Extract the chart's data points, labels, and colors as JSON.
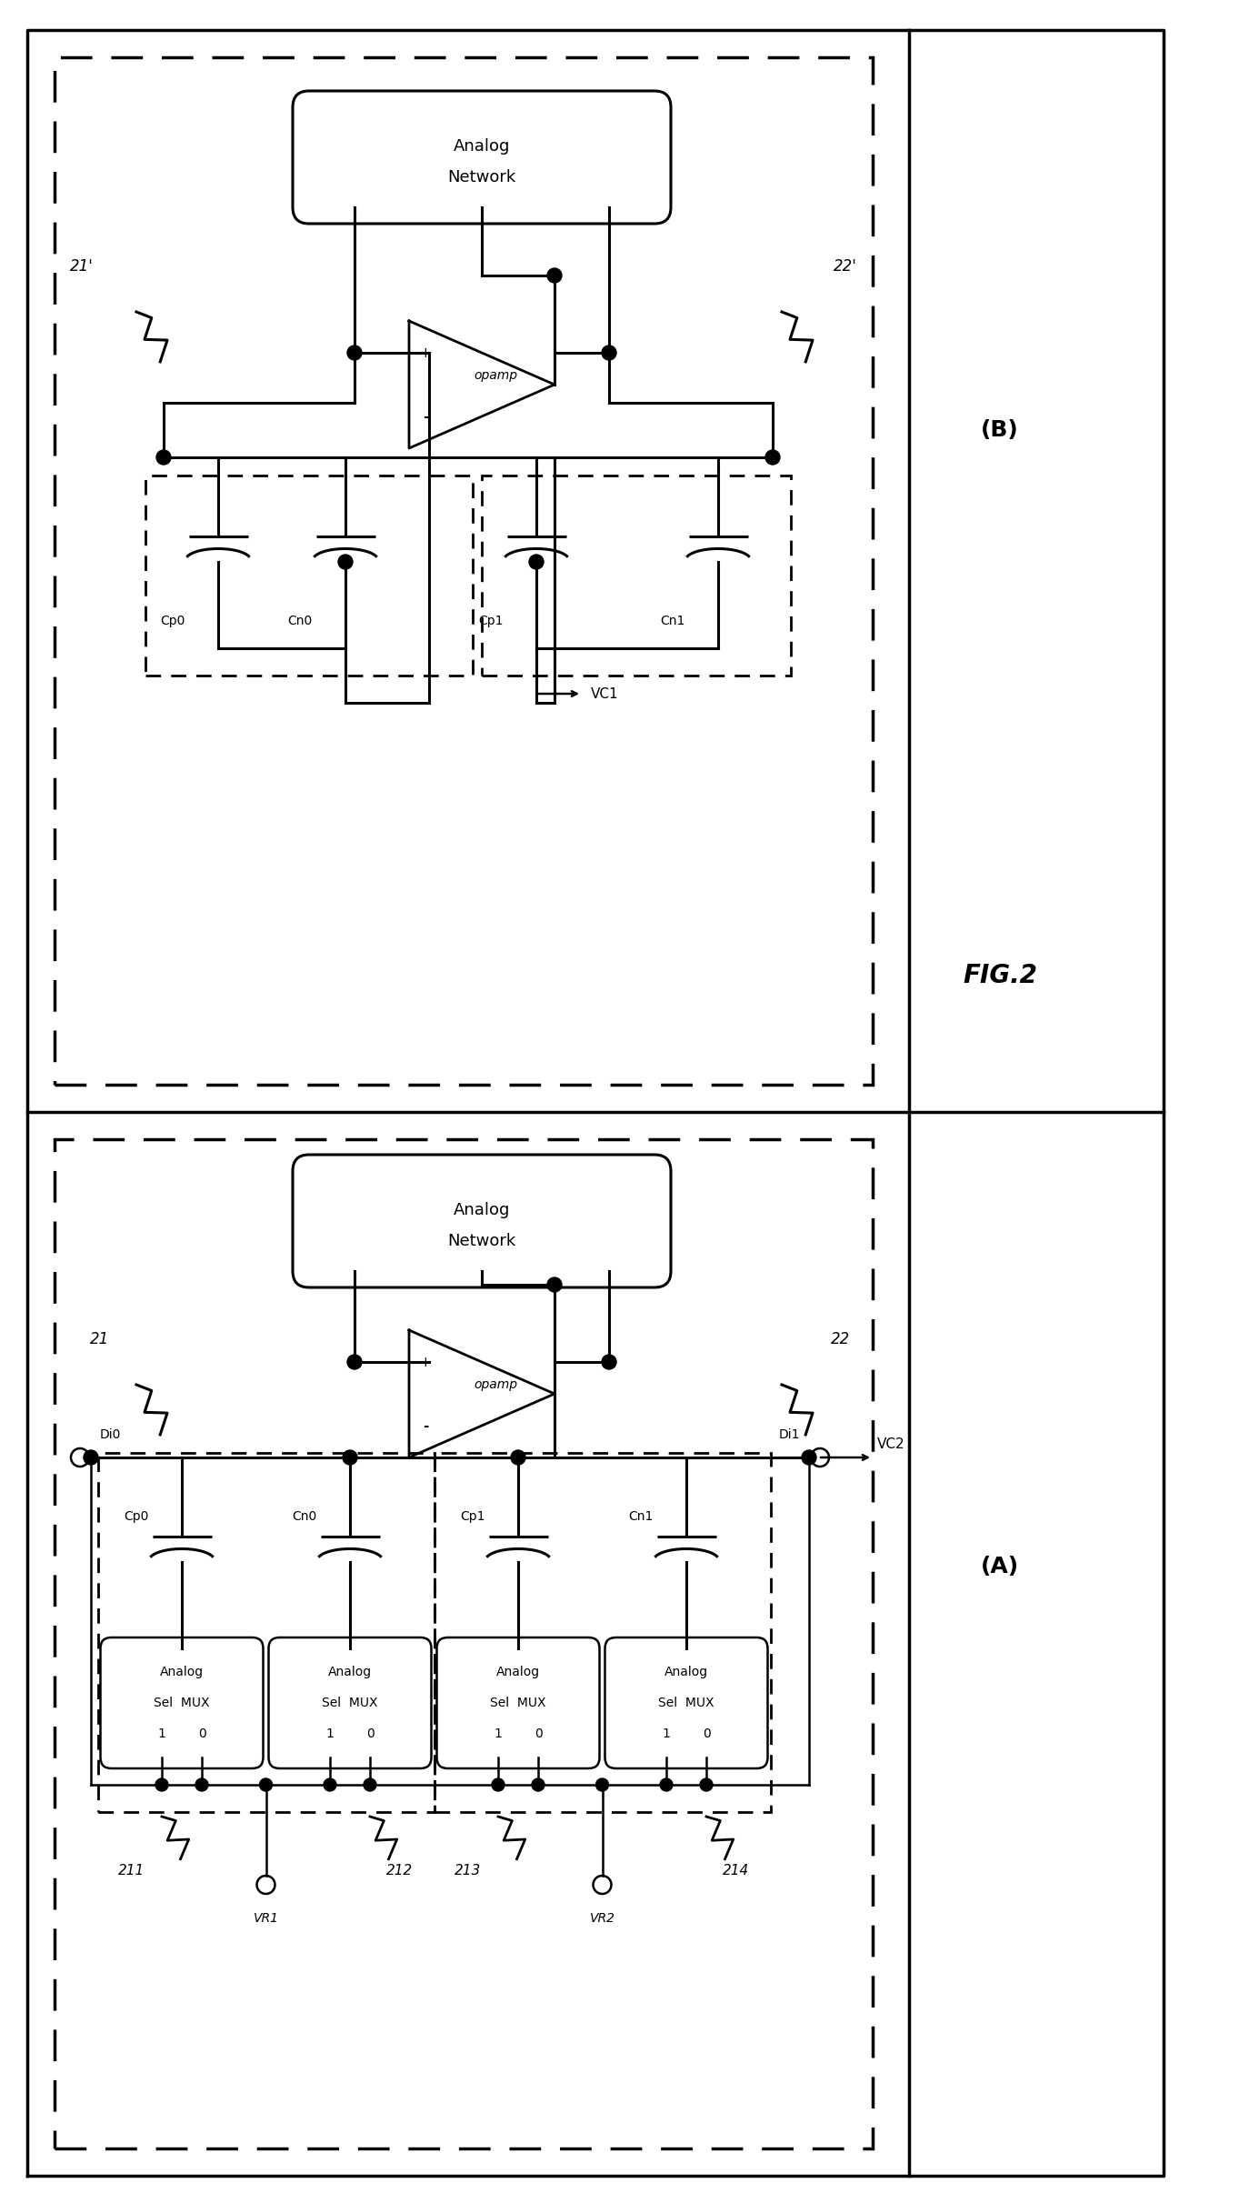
{
  "fig_label": "FIG.2",
  "panel_A_label": "(A)",
  "panel_B_label": "(B)",
  "bg_color": "#ffffff",
  "line_color": "#000000"
}
